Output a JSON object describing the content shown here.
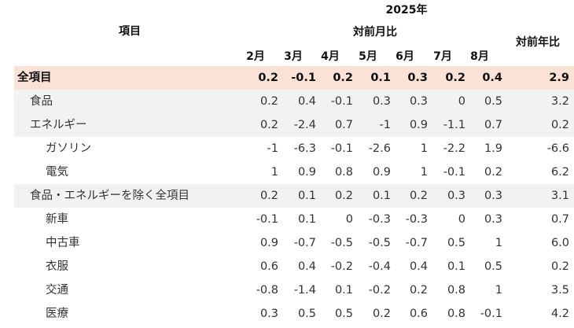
{
  "header": {
    "item_label": "項目",
    "year_label": "2025年",
    "mom_label": "対前月比",
    "yoy_label": "対前年比",
    "months": [
      "2月",
      "3月",
      "4月",
      "5月",
      "6月",
      "7月",
      "8月"
    ]
  },
  "colors": {
    "highlight": "#fbe2d6",
    "band": "#f2f2f2"
  },
  "rows": [
    {
      "label": "全項目",
      "level": 0,
      "style": "pink",
      "bold": true,
      "mom": [
        "0.2",
        "-0.1",
        "0.2",
        "0.1",
        "0.3",
        "0.2",
        "0.4"
      ],
      "yoy": "2.9"
    },
    {
      "label": "食品",
      "level": 1,
      "style": "gray",
      "mom": [
        "0.2",
        "0.4",
        "-0.1",
        "0.3",
        "0.3",
        "0",
        "0.5"
      ],
      "yoy": "3.2"
    },
    {
      "label": "エネルギー",
      "level": 1,
      "style": "gray",
      "mom": [
        "0.2",
        "-2.4",
        "0.7",
        "-1",
        "0.9",
        "-1.1",
        "0.7"
      ],
      "yoy": "0.2"
    },
    {
      "label": "ガソリン",
      "level": 2,
      "style": "",
      "mom": [
        "-1",
        "-6.3",
        "-0.1",
        "-2.6",
        "1",
        "-2.2",
        "1.9"
      ],
      "yoy": "-6.6"
    },
    {
      "label": "電気",
      "level": 2,
      "style": "",
      "mom": [
        "1",
        "0.9",
        "0.8",
        "0.9",
        "1",
        "-0.1",
        "0.2"
      ],
      "yoy": "6.2"
    },
    {
      "label": "食品・エネルギーを除く全項目",
      "level": 1,
      "style": "gray",
      "mom": [
        "0.2",
        "0.1",
        "0.2",
        "0.1",
        "0.2",
        "0.3",
        "0.3"
      ],
      "yoy": "3.1"
    },
    {
      "label": "新車",
      "level": 2,
      "style": "",
      "mom": [
        "-0.1",
        "0.1",
        "0",
        "-0.3",
        "-0.3",
        "0",
        "0.3"
      ],
      "yoy": "0.7"
    },
    {
      "label": "中古車",
      "level": 2,
      "style": "",
      "mom": [
        "0.9",
        "-0.7",
        "-0.5",
        "-0.5",
        "-0.7",
        "0.5",
        "1"
      ],
      "yoy": "6.0"
    },
    {
      "label": "衣服",
      "level": 2,
      "style": "",
      "mom": [
        "0.6",
        "0.4",
        "-0.2",
        "-0.4",
        "0.4",
        "0.1",
        "0.5"
      ],
      "yoy": "0.2"
    },
    {
      "label": "交通",
      "level": 2,
      "style": "",
      "mom": [
        "-0.8",
        "-1.4",
        "0.1",
        "-0.2",
        "0.2",
        "0.8",
        "1"
      ],
      "yoy": "3.5"
    },
    {
      "label": "医療",
      "level": 2,
      "style": "",
      "mom": [
        "0.3",
        "0.5",
        "0.5",
        "0.2",
        "0.6",
        "0.8",
        "-0.1"
      ],
      "yoy": "4.2"
    }
  ]
}
